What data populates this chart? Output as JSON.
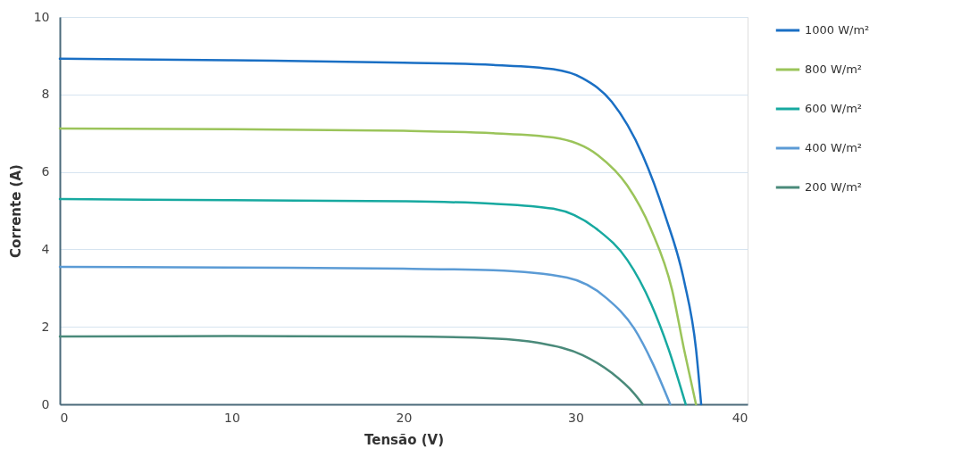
{
  "chart_data": {
    "type": "line",
    "xlabel": "Tensão (V)",
    "ylabel": "Corrente (A)",
    "xlim": [
      0,
      40
    ],
    "ylim": [
      0,
      10
    ],
    "xticks": [
      0,
      10,
      20,
      30,
      40
    ],
    "yticks": [
      0,
      2,
      4,
      6,
      8,
      10
    ],
    "grid": "y",
    "legend": "right",
    "line_style": "solid",
    "marker": "none",
    "series": [
      {
        "name": "1000 W/m²",
        "color": "#1a6fc4",
        "x": [
          0,
          10,
          20,
          25.2,
          28.7,
          30.4,
          32.1,
          33.9,
          35.2,
          36.3,
          37.0,
          37.3
        ],
        "values": [
          8.92,
          8.88,
          8.82,
          8.76,
          8.65,
          8.42,
          7.81,
          6.43,
          4.88,
          3.2,
          1.43,
          0
        ]
      },
      {
        "name": "800 W/m²",
        "color": "#9bc45a",
        "x": [
          0,
          10,
          20,
          25.2,
          28.7,
          31.3,
          33.0,
          34.4,
          35.6,
          36.3,
          37.0
        ],
        "values": [
          7.12,
          7.1,
          7.06,
          7.0,
          6.89,
          6.43,
          5.65,
          4.5,
          2.97,
          1.43,
          0
        ]
      },
      {
        "name": "600 W/m²",
        "color": "#17a9a0",
        "x": [
          0,
          10,
          20,
          25.2,
          28.7,
          31.3,
          33.0,
          34.4,
          35.4,
          36.4
        ],
        "values": [
          5.3,
          5.27,
          5.24,
          5.18,
          5.05,
          4.5,
          3.73,
          2.58,
          1.43,
          0
        ]
      },
      {
        "name": "400 W/m²",
        "color": "#5b9bd5",
        "x": [
          0,
          10,
          20,
          25.2,
          29.5,
          31.8,
          33.4,
          34.5,
          35.5
        ],
        "values": [
          3.55,
          3.53,
          3.5,
          3.46,
          3.27,
          2.74,
          1.96,
          1.04,
          0
        ]
      },
      {
        "name": "200 W/m²",
        "color": "#4a8a7a",
        "x": [
          0,
          10,
          20,
          25.2,
          27.8,
          30.4,
          32.1,
          33.4,
          33.9
        ],
        "values": [
          1.75,
          1.76,
          1.75,
          1.7,
          1.59,
          1.27,
          0.81,
          0.28,
          0
        ]
      }
    ]
  }
}
